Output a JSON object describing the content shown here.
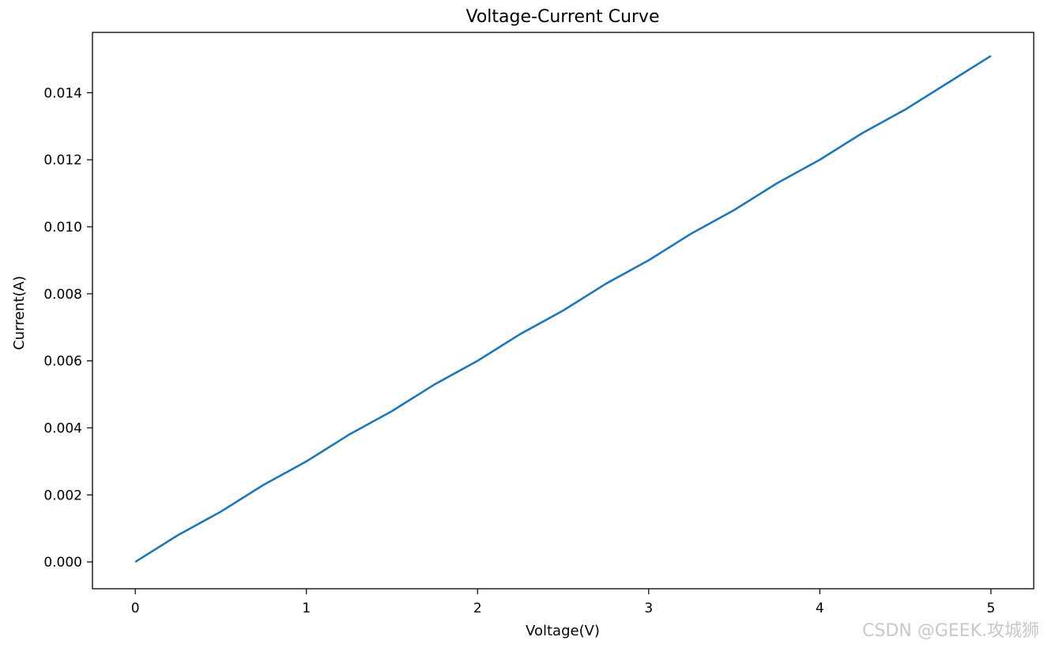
{
  "chart_data": {
    "type": "line",
    "title": "Voltage-Current Curve",
    "xlabel": "Voltage(V)",
    "ylabel": "Current(A)",
    "xlim": [
      -0.25,
      5.25
    ],
    "ylim": [
      -0.0008,
      0.0158
    ],
    "xticks": [
      0,
      1,
      2,
      3,
      4,
      5
    ],
    "xtick_labels": [
      "0",
      "1",
      "2",
      "3",
      "4",
      "5"
    ],
    "yticks": [
      0.0,
      0.002,
      0.004,
      0.006,
      0.008,
      0.01,
      0.012,
      0.014
    ],
    "ytick_labels": [
      "0.000",
      "0.002",
      "0.004",
      "0.006",
      "0.008",
      "0.010",
      "0.012",
      "0.014"
    ],
    "grid": false,
    "series": [
      {
        "color": "#1f77b4",
        "x": [
          0.0,
          0.25,
          0.5,
          0.75,
          1.0,
          1.25,
          1.5,
          1.75,
          2.0,
          2.25,
          2.5,
          2.75,
          3.0,
          3.25,
          3.5,
          3.75,
          4.0,
          4.25,
          4.5,
          4.75,
          5.0
        ],
        "y": [
          0.0,
          0.0008,
          0.0015,
          0.0023,
          0.003,
          0.0038,
          0.0045,
          0.0053,
          0.006,
          0.0068,
          0.0075,
          0.0083,
          0.009,
          0.0098,
          0.0105,
          0.0113,
          0.012,
          0.0128,
          0.0135,
          0.0143,
          0.0151
        ]
      }
    ]
  },
  "watermark": "CSDN @GEEK.攻城狮"
}
